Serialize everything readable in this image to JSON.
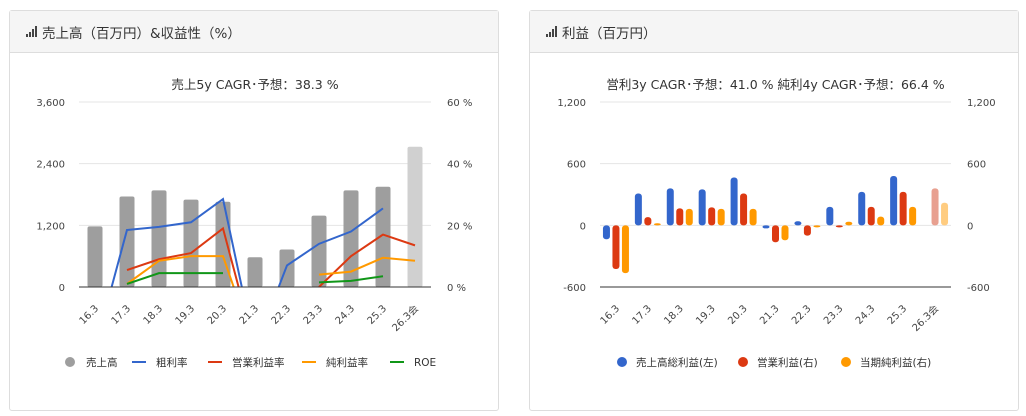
{
  "panels": [
    {
      "title": "売上高（百万円）&収益性（%）",
      "icon": "bar-signal-icon"
    },
    {
      "title": "利益（百万円）",
      "icon": "bar-signal-icon"
    }
  ],
  "chart_data": [
    {
      "type": "bar+line",
      "title": "売上5y CAGR･予想：38.3 %",
      "categories": [
        "16.3",
        "17.3",
        "18.3",
        "19.3",
        "20.3",
        "21.3",
        "22.3",
        "23.3",
        "24.3",
        "25.3",
        "26.3会"
      ],
      "ylim": [
        0,
        3600
      ],
      "yticks": [
        "0",
        "1,200",
        "2,400",
        "3,600"
      ],
      "y2lim": [
        0,
        60
      ],
      "y2ticks": [
        "0 %",
        "20 %",
        "40 %",
        "60 %"
      ],
      "bars": {
        "name": "売上高",
        "color": "#9e9e9e",
        "forecast_color": "#d0d0d0",
        "values": [
          1180,
          1760,
          1880,
          1700,
          1660,
          580,
          730,
          1390,
          1880,
          1950,
          2730
        ]
      },
      "lines": [
        {
          "name": "粗利率",
          "color": "#3366cc",
          "values": [
            -20,
            18.5,
            19.5,
            21,
            28.5,
            -20,
            7,
            14,
            18,
            25.5,
            null
          ]
        },
        {
          "name": "営業利益率",
          "color": "#dc3912",
          "values": [
            null,
            5.5,
            9,
            11,
            19,
            -20,
            null,
            0,
            10,
            17,
            13.5
          ]
        },
        {
          "name": "純利益率",
          "color": "#ff9900",
          "values": [
            null,
            1,
            8.5,
            10,
            10,
            -20,
            null,
            4,
            5,
            9.5,
            8.5
          ]
        },
        {
          "name": "ROE",
          "color": "#109618",
          "values": [
            null,
            1,
            4.5,
            4.5,
            4.5,
            null,
            null,
            1.5,
            2,
            3.5,
            null
          ]
        }
      ],
      "legend": "bottom"
    },
    {
      "type": "bar",
      "title": "営利3y CAGR･予想：41.0 %  純利4y CAGR･予想：66.4 %",
      "categories": [
        "16.3",
        "17.3",
        "18.3",
        "19.3",
        "20.3",
        "21.3",
        "22.3",
        "23.3",
        "24.3",
        "25.3",
        "26.3会"
      ],
      "ylim": [
        -600,
        1200
      ],
      "yticks": [
        "-600",
        "0",
        "600",
        "1,200"
      ],
      "series": [
        {
          "name": "売上高総利益(左)",
          "color": "#3366cc",
          "values": [
            -135,
            310,
            360,
            350,
            465,
            -30,
            40,
            180,
            325,
            480,
            null
          ]
        },
        {
          "name": "営業利益(右)",
          "color": "#dc3912",
          "forecast_color": "#e8a090",
          "values": [
            -425,
            80,
            165,
            175,
            310,
            -165,
            -100,
            0,
            180,
            325,
            360
          ]
        },
        {
          "name": "当期純利益(右)",
          "color": "#ff9900",
          "forecast_color": "#ffcc80",
          "values": [
            -465,
            20,
            160,
            160,
            160,
            -145,
            -5,
            35,
            85,
            180,
            220
          ]
        }
      ],
      "legend": "bottom"
    }
  ]
}
